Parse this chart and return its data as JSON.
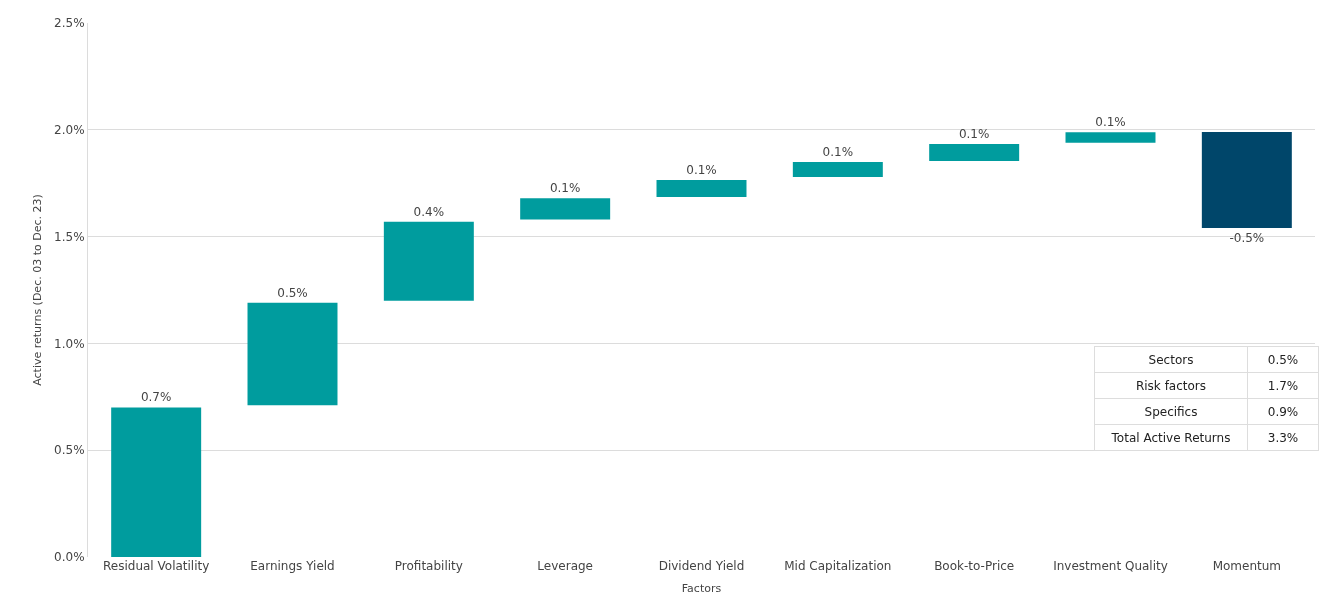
{
  "chart_data": {
    "type": "bar",
    "xlabel": "Factors",
    "ylabel": "Active returns (Dec. 03 to Dec. 23)",
    "categories": [
      "Residual Volatility",
      "Earnings Yield",
      "Profitability",
      "Leverage",
      "Dividend Yield",
      "Mid Capitalization",
      "Book-to-Price",
      "Investment Quality",
      "Momentum"
    ],
    "base": [
      0,
      0.71,
      1.2,
      1.58,
      1.685,
      1.779,
      1.854,
      1.939,
      1.99
    ],
    "values": [
      0.7,
      0.48,
      0.37,
      0.1,
      0.08,
      0.07,
      0.08,
      0.05,
      -0.45
    ],
    "colors": [
      "#009c9e",
      "#009c9e",
      "#009c9e",
      "#009c9e",
      "#009c9e",
      "#009c9e",
      "#009c9e",
      "#009c9e",
      "#00466a"
    ],
    "value_labels": [
      "0.7%",
      "0.5%",
      "0.4%",
      "0.1%",
      "0.1%",
      "0.1%",
      "0.1%",
      "0.1%",
      "-0.5%"
    ],
    "ylim": [
      0,
      2.5
    ],
    "yticks": [
      {
        "value": 0,
        "label": "0.0%"
      },
      {
        "value": 0.5,
        "label": "0.5%"
      },
      {
        "value": 1,
        "label": "1.0%"
      },
      {
        "value": 1.5,
        "label": "1.5%"
      },
      {
        "value": 2,
        "label": "2.0%"
      },
      {
        "value": 2.5,
        "label": "2.5%"
      }
    ],
    "grid": "y",
    "annotations": [
      "Sectors",
      "0.5%",
      "Risk factors",
      "1.7%",
      "Specifics",
      "0.9%",
      "Total Active Returns",
      "3.3%"
    ]
  }
}
